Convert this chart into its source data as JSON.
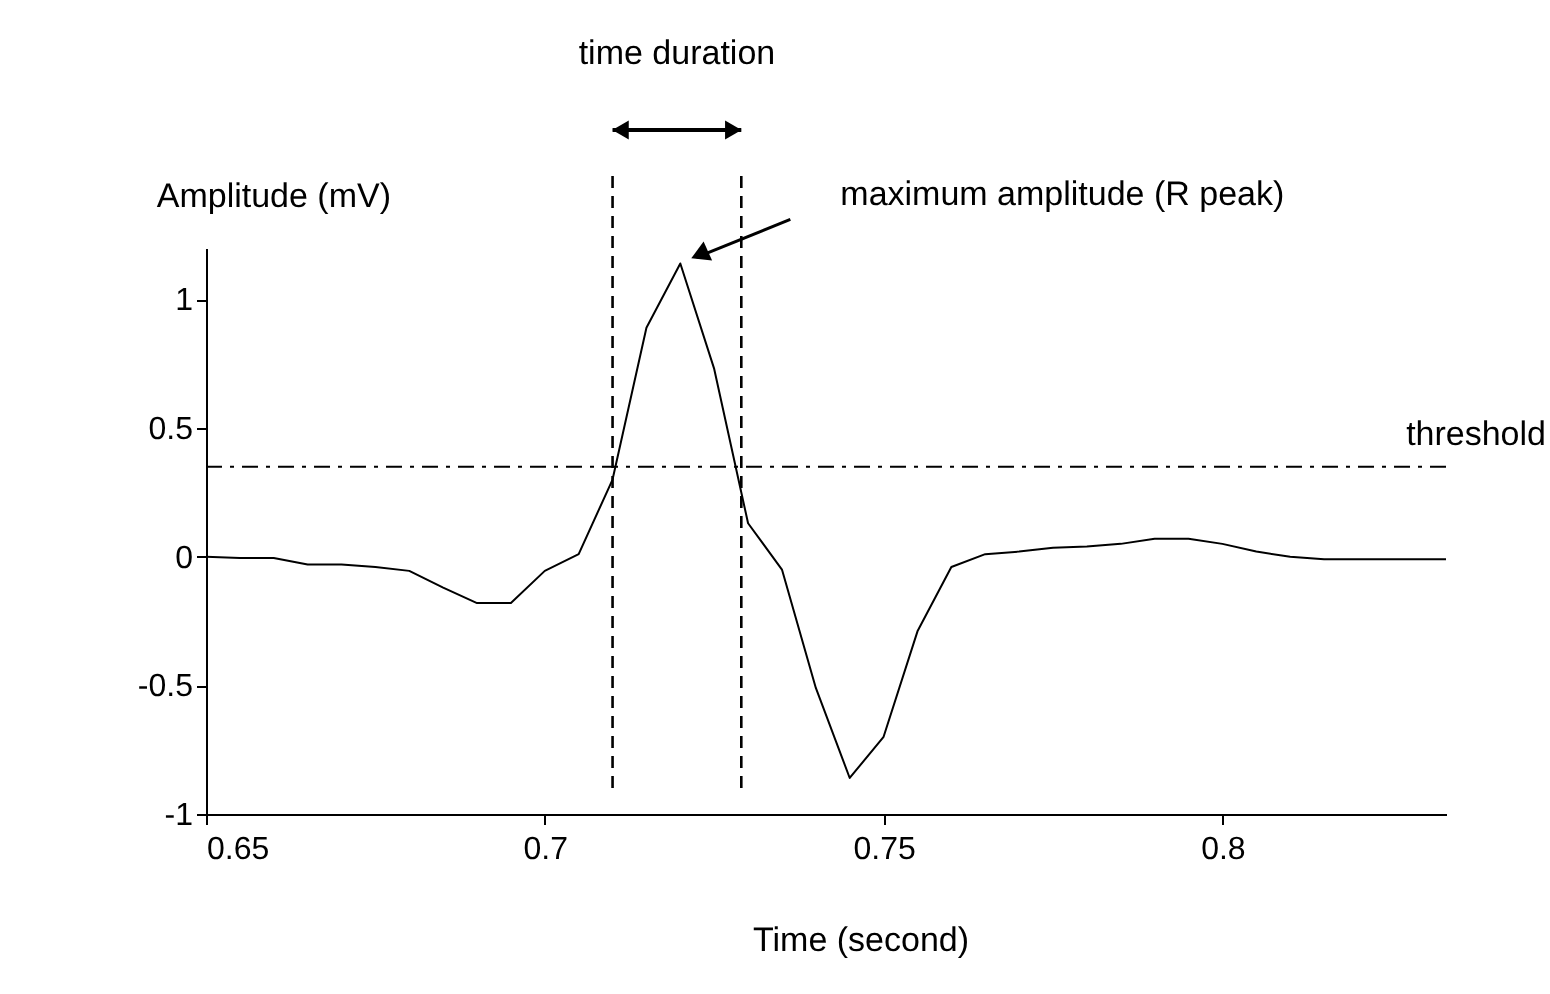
{
  "chart_data": {
    "type": "line",
    "xlabel": "Time (second)",
    "ylabel": "Amplitude (mV)",
    "x": [
      0.65,
      0.655,
      0.66,
      0.665,
      0.67,
      0.675,
      0.68,
      0.685,
      0.69,
      0.695,
      0.7,
      0.705,
      0.71,
      0.715,
      0.72,
      0.725,
      0.73,
      0.735,
      0.74,
      0.745,
      0.75,
      0.755,
      0.76,
      0.765,
      0.77,
      0.775,
      0.78,
      0.785,
      0.79,
      0.795,
      0.8,
      0.805,
      0.81,
      0.815,
      0.82,
      0.825,
      0.83,
      0.833
    ],
    "series": [
      {
        "color": "#000000",
        "values": [
          0.0,
          -0.005,
          -0.005,
          -0.03,
          -0.03,
          -0.04,
          -0.055,
          -0.12,
          -0.18,
          -0.18,
          -0.055,
          0.01,
          0.3,
          0.89,
          1.14,
          0.73,
          0.13,
          -0.05,
          -0.51,
          -0.86,
          -0.7,
          -0.29,
          -0.04,
          0.01,
          0.02,
          0.035,
          0.04,
          0.05,
          0.07,
          0.07,
          0.05,
          0.02,
          0.0,
          -0.01,
          -0.01,
          -0.01,
          -0.01,
          -0.01
        ]
      }
    ],
    "xlim": [
      0.65,
      0.833
    ],
    "ylim": [
      -1,
      1.2
    ],
    "xticks": [
      0.65,
      0.7,
      0.75,
      0.8
    ],
    "yticks": [
      -1,
      -0.5,
      0,
      0.5,
      1
    ],
    "ref_lines": [
      {
        "axis": "y",
        "value": 0.35,
        "label": "threshold",
        "line_style": "dashdot",
        "color": "#000000"
      },
      {
        "axis": "x",
        "value": 0.71,
        "line_style": "dashed",
        "color": "#000000"
      },
      {
        "axis": "x",
        "value": 0.729,
        "line_style": "dashed",
        "color": "#000000"
      }
    ],
    "annotations": [
      "time duration",
      "maximum amplitude (R peak)"
    ],
    "grid": false,
    "line_style": "solid",
    "marker": "none"
  }
}
